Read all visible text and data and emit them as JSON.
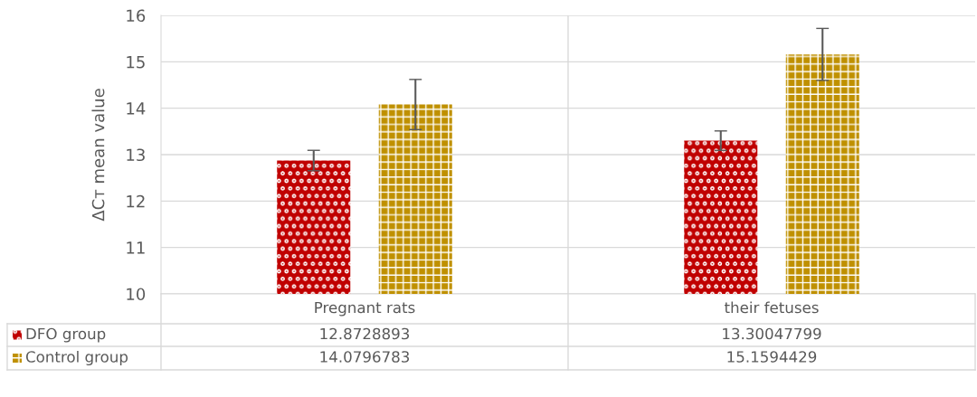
{
  "chart_data": {
    "type": "bar",
    "ylabel": "ΔCт mean value",
    "categories": [
      "Pregnant rats",
      "their fetuses"
    ],
    "series": [
      {
        "name": "DFO group",
        "color": "#c00000",
        "values": [
          12.8728893,
          13.30047799
        ],
        "errors": [
          0.22,
          0.21
        ]
      },
      {
        "name": "Control group",
        "color": "#bf9000",
        "values": [
          14.0796783,
          15.1594429
        ],
        "errors": [
          0.54,
          0.56
        ]
      }
    ],
    "ylim": [
      10,
      16
    ],
    "yticks": [
      10,
      11,
      12,
      13,
      14,
      15,
      16
    ],
    "grid": "y",
    "legend": "bottom",
    "data_labels": true
  }
}
